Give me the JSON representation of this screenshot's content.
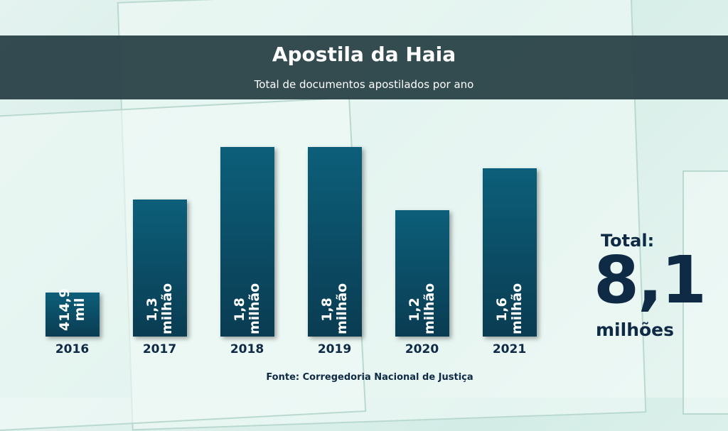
{
  "chart_data": {
    "type": "bar",
    "title": "Apostila da Haia",
    "subtitle": "Total de documentos apostilados por ano",
    "categories": [
      "2016",
      "2017",
      "2018",
      "2019",
      "2020",
      "2021"
    ],
    "values": [
      0.4149,
      1.3,
      1.8,
      1.8,
      1.2,
      1.6
    ],
    "value_labels": [
      "414,9 mil",
      "1,3 milhão",
      "1,8 milhão",
      "1,8 milhão",
      "1,2 milhão",
      "1,6 milhão"
    ],
    "color": "#0c5f7a",
    "total": {
      "label": "Total:",
      "value": 8.1,
      "value_label": "8,1",
      "unit": "milhões"
    },
    "source": "Fonte: Corregedoria Nacional de Justiça"
  }
}
